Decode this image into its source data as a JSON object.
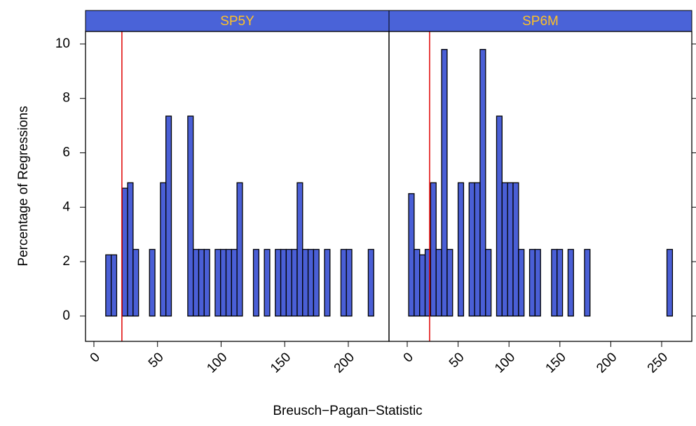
{
  "chart_data": {
    "type": "histogram",
    "xlabel": "Breusch−Pagan−Statistic",
    "ylabel": "Percentage of Regressions",
    "ylim": [
      -0.93,
      10.46
    ],
    "yticks": [
      0,
      2,
      4,
      6,
      8,
      10
    ],
    "color": "#4a5fd6",
    "strip_color": "#4a63d8",
    "strip_text_color": "#ffc125",
    "vline_color": "#e00000",
    "panels": [
      {
        "title": "SP5Y",
        "xlim": [
          -6.6,
          232
        ],
        "xticks": [
          0,
          50,
          100,
          150,
          200
        ],
        "vline": 22,
        "bins": [
          5,
          9.3,
          13.6,
          17.9,
          22.2,
          26.5,
          30.8,
          35.1,
          39.4,
          43.7,
          48,
          52.3,
          56.6,
          60.9,
          65.2,
          69.5,
          73.8,
          78.1,
          82.4,
          86.7,
          91,
          95.3,
          99.6,
          103.9,
          108.2,
          112.5,
          116.8,
          121.1,
          125.4,
          129.7,
          134,
          138.3,
          142.6,
          146.9,
          151.2,
          155.5,
          159.8,
          164.1,
          168.4,
          172.7,
          177,
          181.3,
          185.6,
          189.9,
          194.2,
          198.5,
          202.8,
          207.1,
          211.4,
          215.7,
          220
        ],
        "values": [
          0,
          2.25,
          2.25,
          0,
          4.7,
          4.9,
          2.45,
          0,
          0,
          2.45,
          0,
          4.9,
          7.35,
          0,
          0,
          0,
          7.35,
          2.45,
          2.45,
          2.45,
          0,
          2.45,
          2.45,
          2.45,
          2.45,
          4.9,
          0,
          0,
          2.45,
          0,
          2.45,
          0,
          2.45,
          2.45,
          2.45,
          2.45,
          4.9,
          2.45,
          2.45,
          2.45,
          0,
          2.45,
          0,
          0,
          2.45,
          2.45,
          0,
          0,
          0,
          2.45
        ]
      },
      {
        "title": "SP6M",
        "xlim": [
          -17.9,
          279.6
        ],
        "xticks": [
          0,
          50,
          100,
          150,
          200,
          250
        ],
        "vline": 22,
        "bins": [
          -4,
          1.4,
          6.8,
          12.2,
          17.6,
          23,
          28.4,
          33.8,
          39.2,
          44.6,
          50,
          55.4,
          60.8,
          66.2,
          71.6,
          77,
          82.4,
          87.8,
          93.2,
          98.6,
          104,
          109.4,
          114.8,
          120.2,
          125.6,
          131,
          136.4,
          141.8,
          147.2,
          152.6,
          158,
          163.4,
          168.8,
          174.2,
          179.6,
          185,
          190.4,
          195.8,
          201.2,
          206.6,
          212,
          217.4,
          222.8,
          228.2,
          233.6,
          239,
          244.4,
          249.8,
          255.2,
          260.6,
          266
        ],
        "values": [
          0,
          4.5,
          2.45,
          2.25,
          2.45,
          4.9,
          2.45,
          9.8,
          2.45,
          0,
          4.9,
          0,
          4.9,
          4.9,
          9.8,
          2.45,
          0,
          7.35,
          4.9,
          4.9,
          4.9,
          2.45,
          0,
          2.45,
          2.45,
          0,
          0,
          2.45,
          2.45,
          0,
          2.45,
          0,
          0,
          2.45,
          0,
          0,
          0,
          0,
          0,
          0,
          0,
          0,
          0,
          0,
          0,
          0,
          0,
          0,
          2.45,
          0
        ]
      }
    ]
  }
}
